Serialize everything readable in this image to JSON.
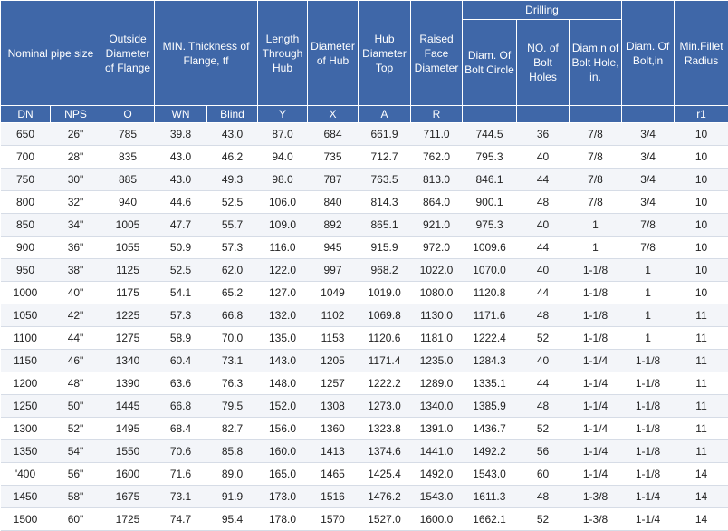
{
  "header": {
    "nominal": "Nominal pipe size",
    "outside_diameter": "Outside Diameter of Flange",
    "min_thickness": "MIN. Thickness of Flange, tf",
    "length_through_hub": "Length Through Hub",
    "diameter_of_hub": "Diameter of Hub",
    "hub_diameter_top": "Hub Diameter Top",
    "raised_face_diameter": "Raised Face Diameter",
    "drilling": "Drilling",
    "bolt_circle": "Diam. Of Bolt Circle",
    "bolt_holes": "NO. of Bolt Holes",
    "bolt_hole_diam": "Diam.n of Bolt Hole, in.",
    "bolt_diam": "Diam. Of Bolt,in",
    "fillet_radius": "Min.Fillet Radius"
  },
  "subheader": [
    "DN",
    "NPS",
    "O",
    "WN",
    "Blind",
    "Y",
    "X",
    "A",
    "R",
    "",
    "",
    "",
    "",
    "r1"
  ],
  "rows": [
    [
      "650",
      "26\"",
      "785",
      "39.8",
      "43.0",
      "87.0",
      "684",
      "661.9",
      "711.0",
      "744.5",
      "36",
      "7/8",
      "3/4",
      "10"
    ],
    [
      "700",
      "28\"",
      "835",
      "43.0",
      "46.2",
      "94.0",
      "735",
      "712.7",
      "762.0",
      "795.3",
      "40",
      "7/8",
      "3/4",
      "10"
    ],
    [
      "750",
      "30\"",
      "885",
      "43.0",
      "49.3",
      "98.0",
      "787",
      "763.5",
      "813.0",
      "846.1",
      "44",
      "7/8",
      "3/4",
      "10"
    ],
    [
      "800",
      "32\"",
      "940",
      "44.6",
      "52.5",
      "106.0",
      "840",
      "814.3",
      "864.0",
      "900.1",
      "48",
      "7/8",
      "3/4",
      "10"
    ],
    [
      "850",
      "34\"",
      "1005",
      "47.7",
      "55.7",
      "109.0",
      "892",
      "865.1",
      "921.0",
      "975.3",
      "40",
      "1",
      "7/8",
      "10"
    ],
    [
      "900",
      "36\"",
      "1055",
      "50.9",
      "57.3",
      "116.0",
      "945",
      "915.9",
      "972.0",
      "1009.6",
      "44",
      "1",
      "7/8",
      "10"
    ],
    [
      "950",
      "38\"",
      "1125",
      "52.5",
      "62.0",
      "122.0",
      "997",
      "968.2",
      "1022.0",
      "1070.0",
      "40",
      "1-1/8",
      "1",
      "10"
    ],
    [
      "1000",
      "40\"",
      "1175",
      "54.1",
      "65.2",
      "127.0",
      "1049",
      "1019.0",
      "1080.0",
      "1120.8",
      "44",
      "1-1/8",
      "1",
      "10"
    ],
    [
      "1050",
      "42\"",
      "1225",
      "57.3",
      "66.8",
      "132.0",
      "1102",
      "1069.8",
      "1130.0",
      "1171.6",
      "48",
      "1-1/8",
      "1",
      "11"
    ],
    [
      "1100",
      "44\"",
      "1275",
      "58.9",
      "70.0",
      "135.0",
      "1153",
      "1120.6",
      "1181.0",
      "1222.4",
      "52",
      "1-1/8",
      "1",
      "11"
    ],
    [
      "1150",
      "46\"",
      "1340",
      "60.4",
      "73.1",
      "143.0",
      "1205",
      "1171.4",
      "1235.0",
      "1284.3",
      "40",
      "1-1/4",
      "1-1/8",
      "11"
    ],
    [
      "1200",
      "48\"",
      "1390",
      "63.6",
      "76.3",
      "148.0",
      "1257",
      "1222.2",
      "1289.0",
      "1335.1",
      "44",
      "1-1/4",
      "1-1/8",
      "11"
    ],
    [
      "1250",
      "50\"",
      "1445",
      "66.8",
      "79.5",
      "152.0",
      "1308",
      "1273.0",
      "1340.0",
      "1385.9",
      "48",
      "1-1/4",
      "1-1/8",
      "11"
    ],
    [
      "1300",
      "52\"",
      "1495",
      "68.4",
      "82.7",
      "156.0",
      "1360",
      "1323.8",
      "1391.0",
      "1436.7",
      "52",
      "1-1/4",
      "1-1/8",
      "11"
    ],
    [
      "1350",
      "54\"",
      "1550",
      "70.6",
      "85.8",
      "160.0",
      "1413",
      "1374.6",
      "1441.0",
      "1492.2",
      "56",
      "1-1/4",
      "1-1/8",
      "11"
    ],
    [
      "'400",
      "56\"",
      "1600",
      "71.6",
      "89.0",
      "165.0",
      "1465",
      "1425.4",
      "1492.0",
      "1543.0",
      "60",
      "1-1/4",
      "1-1/8",
      "14"
    ],
    [
      "1450",
      "58\"",
      "1675",
      "73.1",
      "91.9",
      "173.0",
      "1516",
      "1476.2",
      "1543.0",
      "1611.3",
      "48",
      "1-3/8",
      "1-1/4",
      "14"
    ],
    [
      "1500",
      "60\"",
      "1725",
      "74.7",
      "95.4",
      "178.0",
      "1570",
      "1527.0",
      "1600.0",
      "1662.1",
      "52",
      "1-3/8",
      "1-1/4",
      "14"
    ]
  ]
}
